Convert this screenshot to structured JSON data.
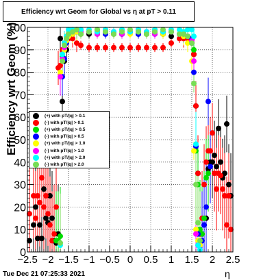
{
  "chart_data": {
    "type": "scatter",
    "title": "Efficiency wrt Geom for Global vs   η at pT > 0.11",
    "xlabel": "η",
    "ylabel": "Efficiency wrt Geom (%)",
    "xlim": [
      -2.5,
      2.5
    ],
    "ylim": [
      0,
      100
    ],
    "x_ticks": [
      -2.5,
      -2,
      -1.5,
      -1,
      -0.5,
      0,
      0.5,
      1,
      1.5,
      2,
      2.5
    ],
    "x_tick_labels": [
      "−2.5",
      "−2",
      "−1.5",
      "−1",
      "−0.5",
      "0",
      "0.5",
      "1",
      "1.5",
      "2",
      "2.5"
    ],
    "y_ticks": [
      0,
      10,
      20,
      30,
      40,
      50,
      60,
      70,
      80,
      90,
      100
    ],
    "y_tick_labels": [
      "0",
      "10",
      "20",
      "30",
      "40",
      "50",
      "60",
      "70",
      "80",
      "90",
      "100"
    ],
    "grid": true,
    "legend_position": "middle-left",
    "series": [
      {
        "name": "(+) with pT/|q| > 0.1",
        "color": "#000000",
        "x": [
          -2.45,
          -2.35,
          -2.3,
          -2.25,
          -2.2,
          -2.15,
          -2.1,
          -2.05,
          -2.0,
          -1.95,
          -1.9,
          -1.85,
          -1.8,
          -1.75,
          -1.7,
          -1.65,
          -1.6,
          -1.55,
          -1.5,
          -1.4,
          -1.3,
          -1.2,
          -1.0,
          -0.8,
          -0.6,
          -0.4,
          -0.2,
          0.0,
          0.2,
          0.4,
          0.6,
          0.8,
          1.0,
          1.2,
          1.3,
          1.4,
          1.5,
          1.55,
          1.6,
          1.65,
          1.7,
          1.75,
          1.8,
          1.85,
          1.9,
          1.95,
          2.0,
          2.05,
          2.1,
          2.15,
          2.2,
          2.25,
          2.3,
          2.35,
          2.4,
          2.45
        ],
        "y": [
          5,
          12,
          20,
          6,
          12,
          6,
          28,
          15,
          13,
          25,
          15,
          5,
          4,
          8,
          95,
          67,
          85,
          90,
          95,
          97,
          98,
          97,
          97,
          97,
          98,
          97,
          97,
          98,
          97,
          97,
          98,
          97,
          96,
          97,
          96,
          95,
          93,
          88,
          65,
          35,
          8,
          8,
          12,
          15,
          37,
          40,
          40,
          43,
          38,
          55,
          40,
          33,
          35,
          57,
          30,
          25
        ]
      },
      {
        "name": "(-) with pT/|q| > 0.1",
        "color": "#ff0000",
        "x": [
          -2.45,
          -2.35,
          -2.3,
          -2.25,
          -2.2,
          -2.15,
          -2.1,
          -2.05,
          -2.0,
          -1.95,
          -1.9,
          -1.85,
          -1.8,
          -1.75,
          -1.7,
          -1.65,
          -1.6,
          -1.55,
          -1.5,
          -1.4,
          -1.3,
          -1.2,
          -1.0,
          -0.8,
          -0.6,
          -0.4,
          -0.2,
          0.0,
          0.2,
          0.4,
          0.6,
          0.8,
          1.0,
          1.2,
          1.3,
          1.4,
          1.5,
          1.55,
          1.6,
          1.65,
          1.7,
          1.75,
          1.8,
          1.85,
          1.9,
          1.95,
          2.0,
          2.05,
          2.1,
          2.15,
          2.2,
          2.25,
          2.3,
          2.35,
          2.4,
          2.45
        ],
        "y": [
          17,
          25,
          15,
          25,
          22,
          33,
          20,
          25,
          17,
          12,
          5,
          8,
          20,
          82,
          83,
          90,
          93,
          95,
          95,
          95,
          93,
          92,
          91,
          91,
          91,
          91,
          91,
          91,
          91,
          91,
          91,
          91,
          93,
          95,
          95,
          95,
          95,
          88,
          65,
          35,
          8,
          15,
          30,
          40,
          45,
          45,
          53,
          35,
          28,
          35,
          34,
          28,
          25,
          12,
          25,
          10
        ]
      },
      {
        "name": "(+) with pT/|q| > 0.5",
        "color": "#00dd00",
        "x": [
          -1.8,
          -1.75,
          -1.7,
          -1.65,
          -1.6,
          -1.55,
          -1.5,
          -1.4,
          -1.3,
          -1.2,
          -1.0,
          -0.8,
          -0.6,
          -0.4,
          -0.2,
          0.0,
          0.2,
          0.4,
          0.6,
          0.8,
          1.0,
          1.2,
          1.3,
          1.4,
          1.5,
          1.55,
          1.6,
          1.65,
          1.7,
          1.75,
          1.8,
          1.85,
          1.9
        ],
        "y": [
          5,
          5,
          7,
          87,
          92,
          95,
          97,
          98,
          99,
          98,
          98,
          99,
          99,
          98,
          99,
          98,
          99,
          98,
          99,
          98,
          98,
          97,
          98,
          96,
          95,
          90,
          45,
          30,
          10,
          8,
          15,
          33,
          35
        ]
      },
      {
        "name": "(-) with pT/|q| > 0.5",
        "color": "#0000ff",
        "x": [
          -1.65,
          -1.6,
          -1.55,
          -1.5,
          -1.4,
          -1.3,
          -1.2,
          -1.0,
          -0.8,
          -0.6,
          -0.4,
          -0.2,
          0.0,
          0.2,
          0.4,
          0.6,
          0.8,
          1.0,
          1.2,
          1.3,
          1.4,
          1.5,
          1.55,
          1.6,
          1.65,
          1.7,
          1.75,
          1.8,
          1.85,
          1.9,
          1.95
        ],
        "y": [
          78,
          86,
          93,
          96,
          97,
          98,
          99,
          98,
          98,
          97,
          98,
          97,
          98,
          97,
          98,
          97,
          98,
          98,
          97,
          97,
          96,
          95,
          80,
          47,
          8,
          3,
          5,
          12,
          20,
          67,
          38
        ]
      },
      {
        "name": "(+) with pT/|q| > 1.0",
        "color": "#ffff00",
        "x": [
          -1.7,
          -1.65,
          -1.6,
          -1.55,
          -1.5,
          -1.4,
          -1.3,
          -1.2,
          -1.0,
          -0.8,
          -0.6,
          -0.4,
          -0.2,
          0.0,
          0.2,
          0.4,
          0.6,
          0.8,
          1.0,
          1.2,
          1.3,
          1.4,
          1.5,
          1.55,
          1.6,
          1.65,
          1.7
        ],
        "y": [
          80,
          85,
          90,
          94,
          96,
          97,
          98,
          97,
          98,
          97,
          98,
          97,
          98,
          97,
          98,
          97,
          98,
          97,
          98,
          97,
          96,
          93,
          85,
          45,
          10,
          5,
          3
        ]
      },
      {
        "name": "(-) with pT/|q| > 1.0",
        "color": "#ff00ff",
        "x": [
          -1.7,
          -1.65,
          -1.6,
          -1.55,
          -1.5,
          -1.4,
          -1.3,
          -1.2,
          -1.0,
          -0.8,
          -0.6,
          -0.4,
          -0.2,
          0.0,
          0.2,
          0.4,
          0.6,
          0.8,
          1.0,
          1.2,
          1.3,
          1.4,
          1.5,
          1.55,
          1.6,
          1.65,
          1.7
        ],
        "y": [
          78,
          86,
          91,
          95,
          97,
          98,
          99,
          98,
          98,
          97,
          99,
          98,
          97,
          98,
          99,
          98,
          97,
          98,
          98,
          97,
          97,
          96,
          94,
          85,
          8,
          3,
          1
        ]
      },
      {
        "name": "(+) with pT/|q| > 2.0",
        "color": "#00ffff",
        "x": [
          -1.7,
          -1.65,
          -1.6,
          -1.55,
          -1.5,
          -1.4,
          -1.3,
          -1.2,
          -1.0,
          -0.8,
          -0.6,
          -0.4,
          -0.2,
          0.0,
          0.2,
          0.4,
          0.6,
          0.8,
          1.0,
          1.2,
          1.3,
          1.4,
          1.5,
          1.55,
          1.6,
          1.65,
          1.7
        ],
        "y": [
          3,
          88,
          93,
          96,
          99,
          99,
          99,
          99,
          99,
          98,
          99,
          98,
          99,
          98,
          99,
          98,
          99,
          98,
          99,
          99,
          98,
          99,
          99,
          96,
          48,
          3,
          1
        ]
      },
      {
        "name": "(-) with pT/|q| > 2.0",
        "color": "#77dd55",
        "x": [
          -1.7,
          -1.65,
          -1.6,
          -1.55,
          -1.5,
          -1.4,
          -1.3,
          -1.2,
          -1.0,
          -0.8,
          -0.6,
          -0.4,
          -0.2,
          0.0,
          0.2,
          0.4,
          0.6,
          0.8,
          1.0,
          1.2,
          1.3,
          1.4,
          1.5,
          1.55,
          1.6,
          1.65,
          1.7
        ],
        "y": [
          4,
          85,
          92,
          95,
          97,
          98,
          99,
          97,
          98,
          99,
          98,
          97,
          98,
          99,
          98,
          97,
          98,
          99,
          98,
          97,
          97,
          96,
          93,
          75,
          30,
          13,
          5
        ]
      }
    ]
  },
  "footer": {
    "timestamp": "Tue Dec 21 07:25:33 2021"
  }
}
